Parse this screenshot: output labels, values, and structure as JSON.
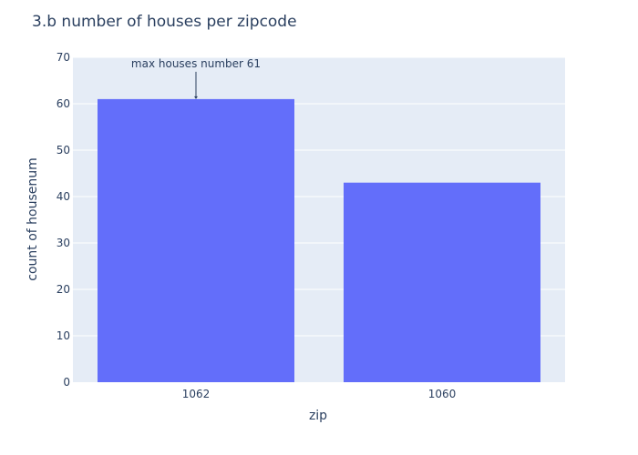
{
  "chart_data": {
    "type": "bar",
    "title": "3.b number of houses per zipcode",
    "xlabel": "zip",
    "ylabel": "count of housenum",
    "categories": [
      "1062",
      "1060"
    ],
    "values": [
      61,
      43
    ],
    "ylim": [
      0,
      70
    ],
    "yticks": [
      0,
      10,
      20,
      30,
      40,
      50,
      60,
      70
    ],
    "grid": true,
    "bar_color": "#636efa",
    "plot_bg": "#e5ecf6",
    "annotation": {
      "text": "max houses number 61",
      "category": "1062",
      "value": 61
    }
  }
}
